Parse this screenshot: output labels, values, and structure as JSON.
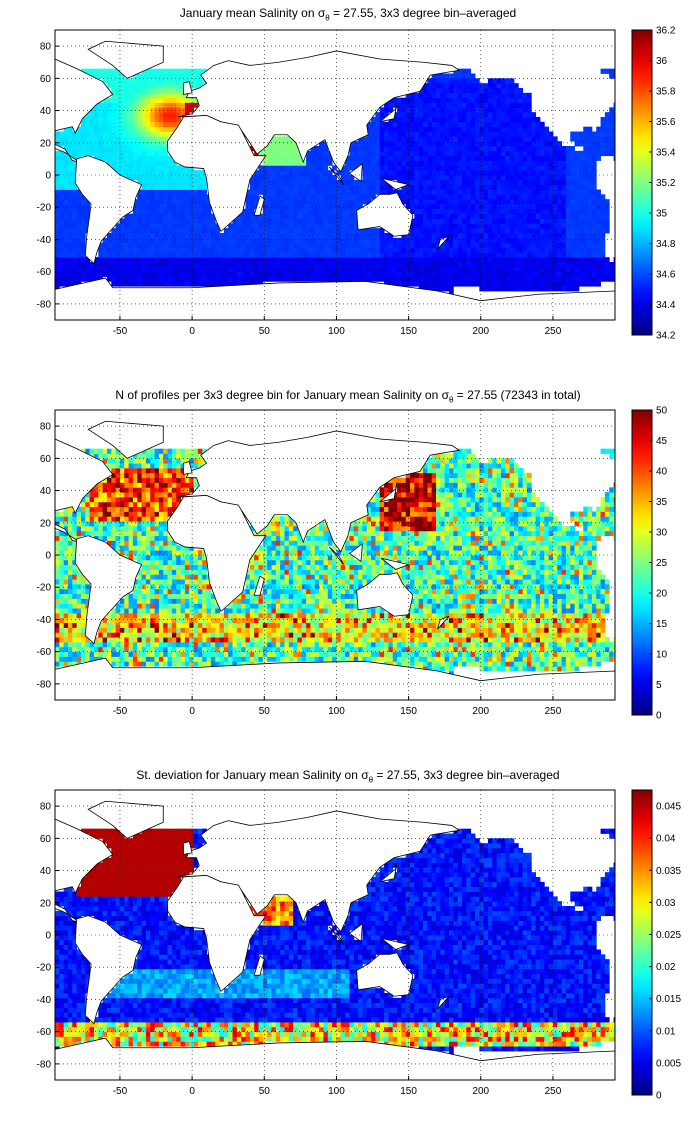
{
  "chart_data": [
    {
      "type": "heatmap",
      "title": {
        "pre": "January mean Salinity on σ",
        "sub": "θ",
        "post": " = 27.55, 3x3 degree bin–averaged"
      },
      "xticks": [
        "-50",
        "0",
        "50",
        "100",
        "150",
        "200",
        "250"
      ],
      "xtick_values": [
        -50,
        0,
        50,
        100,
        150,
        200,
        250
      ],
      "xlim": [
        -95,
        293
      ],
      "yticks": [
        "80",
        "60",
        "40",
        "20",
        "0",
        "-20",
        "-40",
        "-60",
        "-80"
      ],
      "ytick_values": [
        80,
        60,
        40,
        20,
        0,
        -20,
        -40,
        -60,
        -80
      ],
      "ylim": [
        -90,
        90
      ],
      "colorbar": {
        "min": 34.2,
        "max": 36.2,
        "ticks": [
          "36.2",
          "36",
          "35.8",
          "35.6",
          "35.4",
          "35.2",
          "35",
          "34.8",
          "34.6",
          "34.4",
          "34.2"
        ],
        "tick_values": [
          36.2,
          36,
          35.8,
          35.6,
          35.4,
          35.2,
          35,
          34.8,
          34.6,
          34.4,
          34.2
        ]
      },
      "grid": "dotted"
    },
    {
      "type": "heatmap",
      "title": {
        "pre": "N of profiles per 3x3 degree bin for January mean Salinity on σ",
        "sub": "θ",
        "post": " = 27.55 (72343 in total)"
      },
      "xticks": [
        "-50",
        "0",
        "50",
        "100",
        "150",
        "200",
        "250"
      ],
      "xtick_values": [
        -50,
        0,
        50,
        100,
        150,
        200,
        250
      ],
      "xlim": [
        -95,
        293
      ],
      "yticks": [
        "80",
        "60",
        "40",
        "20",
        "0",
        "-20",
        "-40",
        "-60",
        "-80"
      ],
      "ytick_values": [
        80,
        60,
        40,
        20,
        0,
        -20,
        -40,
        -60,
        -80
      ],
      "ylim": [
        -90,
        90
      ],
      "colorbar": {
        "min": 0,
        "max": 50,
        "ticks": [
          "50",
          "45",
          "40",
          "35",
          "30",
          "25",
          "20",
          "15",
          "10",
          "5",
          "0"
        ],
        "tick_values": [
          50,
          45,
          40,
          35,
          30,
          25,
          20,
          15,
          10,
          5,
          0
        ]
      },
      "grid": "dotted"
    },
    {
      "type": "heatmap",
      "title": {
        "pre": "St. deviation for January mean Salinity on σ",
        "sub": "θ",
        "post": " = 27.55, 3x3 degree bin–averaged"
      },
      "xticks": [
        "-50",
        "0",
        "50",
        "100",
        "150",
        "200",
        "250"
      ],
      "xtick_values": [
        -50,
        0,
        50,
        100,
        150,
        200,
        250
      ],
      "xlim": [
        -95,
        293
      ],
      "yticks": [
        "80",
        "60",
        "40",
        "20",
        "0",
        "-20",
        "-40",
        "-60",
        "-80"
      ],
      "ytick_values": [
        80,
        60,
        40,
        20,
        0,
        -20,
        -40,
        -60,
        -80
      ],
      "ylim": [
        -90,
        90
      ],
      "colorbar": {
        "min": 0,
        "max": 0.0475,
        "ticks": [
          "0.045",
          "0.04",
          "0.035",
          "0.03",
          "0.025",
          "0.02",
          "0.015",
          "0.01",
          "0.005",
          "0"
        ],
        "tick_values": [
          0.045,
          0.04,
          0.035,
          0.03,
          0.025,
          0.02,
          0.015,
          0.01,
          0.005,
          0
        ]
      },
      "grid": "dotted"
    }
  ]
}
